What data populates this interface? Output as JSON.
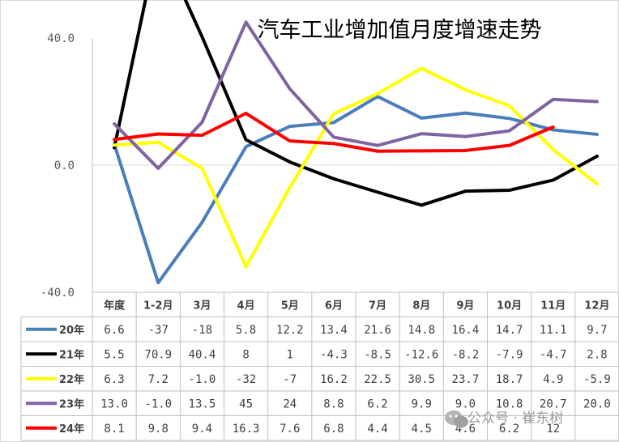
{
  "chart_data": {
    "type": "line",
    "title": "汽车工业增加值月度增速走势",
    "categories": [
      "年度",
      "1-2月",
      "3月",
      "4月",
      "5月",
      "6月",
      "7月",
      "8月",
      "9月",
      "10月",
      "11月",
      "12月"
    ],
    "ylim": [
      -40,
      40
    ],
    "yticks": [
      "40.0",
      "0.0",
      "-40.0"
    ],
    "grid": false,
    "series": [
      {
        "name": "20年",
        "color": "#4a7ebb",
        "values": [
          6.6,
          -37,
          -18,
          5.8,
          12.2,
          13.4,
          21.6,
          14.8,
          16.4,
          14.7,
          11.1,
          9.7
        ],
        "labels": [
          "6.6",
          "-37",
          "-18",
          "5.8",
          "12.2",
          "13.4",
          "21.6",
          "14.8",
          "16.4",
          "14.7",
          "11.1",
          "9.7"
        ]
      },
      {
        "name": "21年",
        "color": "#000000",
        "values": [
          5.5,
          70.9,
          40.4,
          8,
          1,
          -4.3,
          -8.5,
          -12.6,
          -8.2,
          -7.9,
          -4.7,
          2.8
        ],
        "labels": [
          "5.5",
          "70.9",
          "40.4",
          "8",
          "1",
          "-4.3",
          "-8.5",
          "-12.6",
          "-8.2",
          "-7.9",
          "-4.7",
          "2.8"
        ]
      },
      {
        "name": "22年",
        "color": "#ffff00",
        "values": [
          6.3,
          7.2,
          -1.0,
          -32,
          -7,
          16.2,
          22.5,
          30.5,
          23.7,
          18.7,
          4.9,
          -5.9
        ],
        "labels": [
          "6.3",
          "7.2",
          "-1.0",
          "-32",
          "-7",
          "16.2",
          "22.5",
          "30.5",
          "23.7",
          "18.7",
          "4.9",
          "-5.9"
        ]
      },
      {
        "name": "23年",
        "color": "#8064a2",
        "values": [
          13.0,
          -1.0,
          13.5,
          45,
          24,
          8.8,
          6.2,
          9.9,
          9.0,
          10.8,
          20.7,
          20.0
        ],
        "labels": [
          "13.0",
          "-1.0",
          "13.5",
          "45",
          "24",
          "8.8",
          "6.2",
          "9.9",
          "9.0",
          "10.8",
          "20.7",
          "20.0"
        ]
      },
      {
        "name": "24年",
        "color": "#ff0000",
        "values": [
          8.1,
          9.8,
          9.4,
          16.3,
          7.6,
          6.8,
          4.4,
          4.5,
          4.6,
          6.2,
          12,
          null
        ],
        "labels": [
          "8.1",
          "9.8",
          "9.4",
          "16.3",
          "7.6",
          "6.8",
          "4.4",
          "4.5",
          "4.6",
          "6.2",
          "12",
          ""
        ]
      }
    ]
  },
  "watermark": "公众号 · 崔东树"
}
